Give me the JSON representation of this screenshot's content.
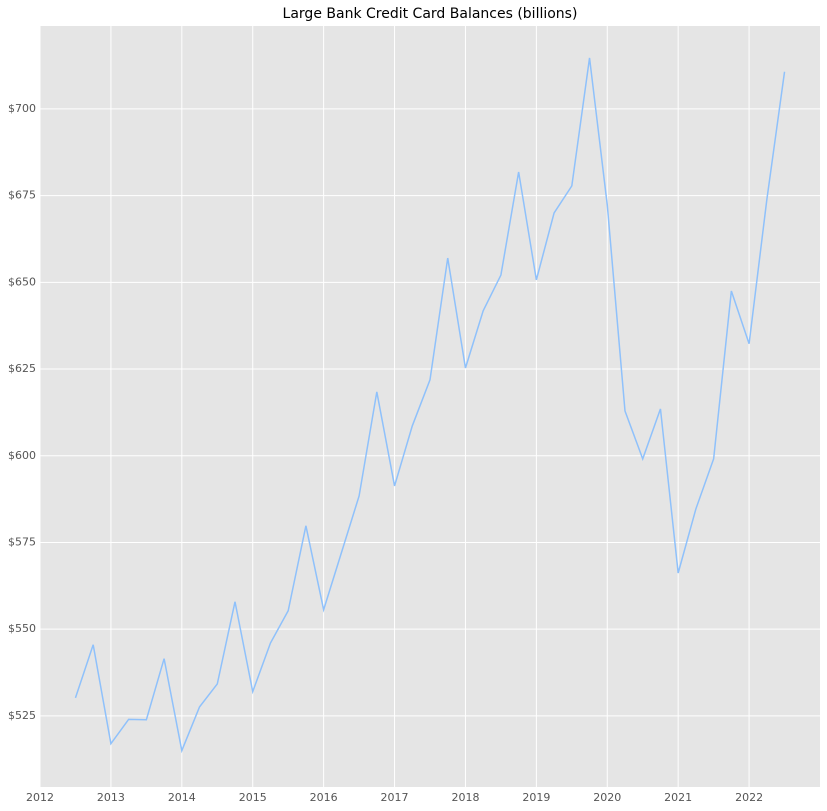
{
  "chart_data": {
    "type": "line",
    "title": "Large Bank Credit Card Balances (billions)",
    "x": [
      2012.5,
      2012.75,
      2013.0,
      2013.25,
      2013.5,
      2013.75,
      2014.0,
      2014.25,
      2014.5,
      2014.75,
      2015.0,
      2015.25,
      2015.5,
      2015.75,
      2016.0,
      2016.25,
      2016.5,
      2016.75,
      2017.0,
      2017.25,
      2017.5,
      2017.75,
      2018.0,
      2018.25,
      2018.5,
      2018.75,
      2019.0,
      2019.25,
      2019.5,
      2019.75,
      2020.0,
      2020.25,
      2020.5,
      2020.75,
      2021.0,
      2021.25,
      2021.5,
      2021.75,
      2022.0,
      2022.25,
      2022.5
    ],
    "series": [
      {
        "color": "#8fc1fb",
        "values": [
          530.2,
          545.5,
          517,
          524,
          523.9,
          541.5,
          515,
          527.6,
          534.2,
          557.9,
          532,
          546,
          555.3,
          579.8,
          555.6,
          572,
          588.4,
          618.4,
          591.3,
          608.6,
          621.9,
          657,
          625.3,
          641.8,
          652.1,
          681.8,
          650.7,
          670,
          677.8,
          714.7,
          672.3,
          612.9,
          599.1,
          613.5,
          566.2,
          584.7,
          599.1,
          647.5,
          632.3,
          673.8,
          710.7
        ]
      }
    ],
    "xlim": [
      2012,
      2023
    ],
    "xticks": [
      2012,
      2013,
      2014,
      2015,
      2016,
      2017,
      2018,
      2019,
      2020,
      2021,
      2022
    ],
    "ylim": [
      504.5,
      723.9
    ],
    "yticks": [
      {
        "value": 525,
        "label": "$525"
      },
      {
        "value": 550,
        "label": "$550"
      },
      {
        "value": 575,
        "label": "$575"
      },
      {
        "value": 600,
        "label": "$600"
      },
      {
        "value": 625,
        "label": "$625"
      },
      {
        "value": 650,
        "label": "$650"
      },
      {
        "value": 675,
        "label": "$675"
      },
      {
        "value": 700,
        "label": "$700"
      }
    ],
    "grid": true
  }
}
